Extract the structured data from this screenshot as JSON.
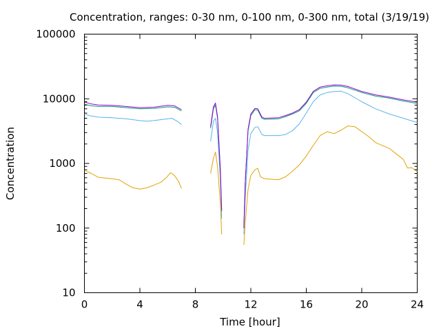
{
  "chart_data": {
    "type": "line",
    "title": "Concentration, ranges: 0-30 nm, 0-100 nm, 0-300 nm, total (3/19/19)",
    "xlabel": "Time [hour]",
    "ylabel": "Concentration",
    "xlim": [
      0,
      24
    ],
    "ylim": [
      10,
      100000
    ],
    "yscale": "log",
    "xticks": [
      0,
      4,
      8,
      12,
      16,
      20,
      24
    ],
    "xtick_labels": [
      "0",
      "4",
      "8",
      "12",
      "16",
      "20",
      "24"
    ],
    "yticks": [
      10,
      100,
      1000,
      10000,
      100000
    ],
    "ytick_labels": [
      "10",
      "100",
      "1000",
      "10000",
      "100000"
    ],
    "grid": false,
    "legend": "none",
    "series": [
      {
        "color": "#e69f00",
        "segments": [
          [
            [
              0,
              780
            ],
            [
              0.5,
              700
            ],
            [
              1,
              610
            ],
            [
              2,
              580
            ],
            [
              2.5,
              560
            ],
            [
              3,
              480
            ],
            [
              3.5,
              420
            ],
            [
              4,
              400
            ],
            [
              4.5,
              420
            ],
            [
              5,
              460
            ],
            [
              5.5,
              510
            ],
            [
              5.9,
              600
            ],
            [
              6.2,
              720
            ],
            [
              6.5,
              650
            ],
            [
              6.8,
              520
            ],
            [
              7,
              410
            ]
          ],
          [
            [
              9.1,
              700
            ],
            [
              9.3,
              1200
            ],
            [
              9.45,
              1500
            ],
            [
              9.6,
              900
            ],
            [
              9.8,
              250
            ],
            [
              9.9,
              80
            ]
          ],
          [
            [
              11.5,
              55
            ],
            [
              11.6,
              120
            ],
            [
              11.8,
              400
            ],
            [
              12,
              650
            ],
            [
              12.3,
              800
            ],
            [
              12.5,
              840
            ],
            [
              12.7,
              620
            ],
            [
              13,
              580
            ],
            [
              14,
              560
            ],
            [
              14.5,
              620
            ],
            [
              15,
              760
            ],
            [
              15.5,
              950
            ],
            [
              16,
              1300
            ],
            [
              16.5,
              1900
            ],
            [
              17,
              2700
            ],
            [
              17.5,
              3100
            ],
            [
              18,
              2900
            ],
            [
              18.5,
              3250
            ],
            [
              19,
              3800
            ],
            [
              19.5,
              3700
            ],
            [
              20,
              3100
            ],
            [
              20.5,
              2600
            ],
            [
              21,
              2100
            ],
            [
              22,
              1700
            ],
            [
              22.5,
              1400
            ],
            [
              23,
              1150
            ],
            [
              23.3,
              850
            ],
            [
              23.6,
              860
            ],
            [
              24,
              750
            ]
          ]
        ]
      },
      {
        "color": "#56b4e9",
        "segments": [
          [
            [
              0,
              5800
            ],
            [
              0.5,
              5400
            ],
            [
              1,
              5200
            ],
            [
              2,
              5100
            ],
            [
              3,
              4900
            ],
            [
              4,
              4600
            ],
            [
              4.5,
              4500
            ],
            [
              5,
              4600
            ],
            [
              6,
              4900
            ],
            [
              6.3,
              5000
            ],
            [
              6.7,
              4500
            ],
            [
              7,
              4000
            ]
          ],
          [
            [
              9.1,
              2200
            ],
            [
              9.3,
              4500
            ],
            [
              9.45,
              5000
            ],
            [
              9.6,
              3000
            ],
            [
              9.8,
              600
            ],
            [
              9.9,
              140
            ]
          ],
          [
            [
              11.5,
              80
            ],
            [
              11.6,
              300
            ],
            [
              11.8,
              1600
            ],
            [
              12,
              2900
            ],
            [
              12.3,
              3600
            ],
            [
              12.5,
              3700
            ],
            [
              12.8,
              2800
            ],
            [
              13,
              2700
            ],
            [
              14,
              2700
            ],
            [
              14.5,
              2800
            ],
            [
              15,
              3200
            ],
            [
              15.5,
              4100
            ],
            [
              16,
              6000
            ],
            [
              16.5,
              9000
            ],
            [
              17,
              11500
            ],
            [
              17.5,
              12500
            ],
            [
              18,
              13000
            ],
            [
              18.5,
              13100
            ],
            [
              19,
              12000
            ],
            [
              20,
              9000
            ],
            [
              21,
              7000
            ],
            [
              22,
              5800
            ],
            [
              23,
              5000
            ],
            [
              24,
              4300
            ]
          ]
        ]
      },
      {
        "color": "#009e73",
        "segments": [
          [
            [
              0,
              8200
            ],
            [
              0.5,
              7800
            ],
            [
              1,
              7600
            ],
            [
              2,
              7600
            ],
            [
              3,
              7300
            ],
            [
              4,
              7000
            ],
            [
              5,
              7100
            ],
            [
              6,
              7500
            ],
            [
              6.5,
              7400
            ],
            [
              7,
              6500
            ]
          ],
          [
            [
              9.1,
              3500
            ],
            [
              9.3,
              7000
            ],
            [
              9.45,
              8000
            ],
            [
              9.6,
              5000
            ],
            [
              9.8,
              800
            ],
            [
              9.9,
              180
            ]
          ],
          [
            [
              11.5,
              100
            ],
            [
              11.6,
              500
            ],
            [
              11.8,
              3200
            ],
            [
              12,
              5500
            ],
            [
              12.3,
              6800
            ],
            [
              12.5,
              6700
            ],
            [
              12.8,
              5000
            ],
            [
              13,
              4800
            ],
            [
              14,
              4900
            ],
            [
              14.5,
              5300
            ],
            [
              15,
              5800
            ],
            [
              15.5,
              6500
            ],
            [
              16,
              8500
            ],
            [
              16.5,
              12500
            ],
            [
              17,
              14500
            ],
            [
              17.5,
              15200
            ],
            [
              18,
              15700
            ],
            [
              18.5,
              15600
            ],
            [
              19,
              14800
            ],
            [
              20,
              12500
            ],
            [
              21,
              11000
            ],
            [
              22,
              10200
            ],
            [
              23,
              9200
            ],
            [
              24,
              8500
            ]
          ]
        ]
      },
      {
        "color": "#9400d3",
        "segments": [
          [
            [
              0,
              8900
            ],
            [
              0.5,
              8300
            ],
            [
              1,
              8000
            ],
            [
              2,
              7900
            ],
            [
              3,
              7600
            ],
            [
              4,
              7300
            ],
            [
              5,
              7400
            ],
            [
              6,
              7900
            ],
            [
              6.5,
              7800
            ],
            [
              7,
              6800
            ]
          ],
          [
            [
              9.1,
              3700
            ],
            [
              9.3,
              7500
            ],
            [
              9.45,
              8600
            ],
            [
              9.6,
              5300
            ],
            [
              9.8,
              850
            ],
            [
              9.9,
              190
            ]
          ],
          [
            [
              11.5,
              100
            ],
            [
              11.6,
              520
            ],
            [
              11.8,
              3400
            ],
            [
              12,
              5800
            ],
            [
              12.3,
              7100
            ],
            [
              12.5,
              7000
            ],
            [
              12.8,
              5200
            ],
            [
              13,
              5000
            ],
            [
              14,
              5100
            ],
            [
              14.5,
              5500
            ],
            [
              15,
              6000
            ],
            [
              15.5,
              6800
            ],
            [
              16,
              8900
            ],
            [
              16.5,
              13000
            ],
            [
              17,
              15200
            ],
            [
              17.5,
              15900
            ],
            [
              18,
              16400
            ],
            [
              18.5,
              16300
            ],
            [
              19,
              15500
            ],
            [
              20,
              13000
            ],
            [
              21,
              11500
            ],
            [
              22,
              10600
            ],
            [
              23,
              9600
            ],
            [
              24,
              8900
            ]
          ]
        ]
      }
    ]
  }
}
